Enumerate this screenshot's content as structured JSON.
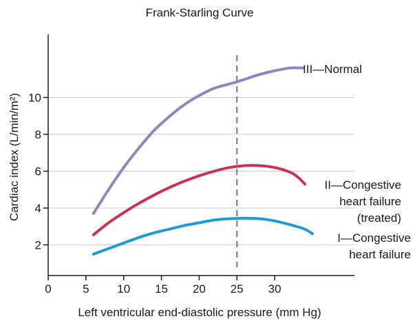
{
  "chart_data": {
    "type": "line",
    "title": "Frank-Starling Curve",
    "xlabel": "Left ventricular end-diastolic pressure (mm Hg)",
    "ylabel": "Cardiac index (L/min/m²)",
    "xlim": [
      0,
      41
    ],
    "ylim": [
      0.3,
      13.3
    ],
    "x_ticks": [
      0,
      5,
      10,
      15,
      20,
      25,
      30
    ],
    "y_ticks": [
      2,
      4,
      6,
      8,
      10
    ],
    "x_tick_labels": [
      "0",
      "5",
      "10",
      "15",
      "20",
      "25",
      "30"
    ],
    "y_tick_labels": [
      "2",
      "4",
      "6",
      "8",
      "10"
    ],
    "grid": "horizontal",
    "reference_line": {
      "x": 25,
      "style": "dashed"
    },
    "series": [
      {
        "name_lines": [
          "III—Normal"
        ],
        "color": "#8f86c0",
        "points": [
          [
            6,
            3.7
          ],
          [
            8,
            5.0
          ],
          [
            10,
            6.2
          ],
          [
            12,
            7.25
          ],
          [
            14,
            8.2
          ],
          [
            16,
            8.95
          ],
          [
            18,
            9.6
          ],
          [
            20,
            10.1
          ],
          [
            22,
            10.5
          ],
          [
            25,
            10.85
          ],
          [
            28,
            11.25
          ],
          [
            30,
            11.45
          ],
          [
            32,
            11.6
          ],
          [
            33.8,
            11.6
          ]
        ]
      },
      {
        "name_lines": [
          "II—Congestive",
          "heart failure",
          "(treated)"
        ],
        "color": "#c8334f",
        "points": [
          [
            6,
            2.55
          ],
          [
            8,
            3.2
          ],
          [
            10,
            3.75
          ],
          [
            12,
            4.25
          ],
          [
            14,
            4.7
          ],
          [
            16,
            5.1
          ],
          [
            18,
            5.45
          ],
          [
            20,
            5.75
          ],
          [
            22,
            6.0
          ],
          [
            24,
            6.2
          ],
          [
            26,
            6.3
          ],
          [
            28,
            6.3
          ],
          [
            30,
            6.2
          ],
          [
            32,
            5.95
          ],
          [
            33,
            5.7
          ],
          [
            34,
            5.3
          ]
        ]
      },
      {
        "name_lines": [
          "I—Congestive",
          "heart failure"
        ],
        "color": "#1f9ad6",
        "points": [
          [
            6,
            1.5
          ],
          [
            8,
            1.8
          ],
          [
            10,
            2.1
          ],
          [
            12,
            2.4
          ],
          [
            14,
            2.65
          ],
          [
            16,
            2.85
          ],
          [
            18,
            3.05
          ],
          [
            20,
            3.2
          ],
          [
            22,
            3.35
          ],
          [
            24,
            3.42
          ],
          [
            26,
            3.45
          ],
          [
            28,
            3.42
          ],
          [
            30,
            3.3
          ],
          [
            32,
            3.1
          ],
          [
            34,
            2.85
          ],
          [
            35,
            2.6
          ]
        ]
      }
    ]
  }
}
